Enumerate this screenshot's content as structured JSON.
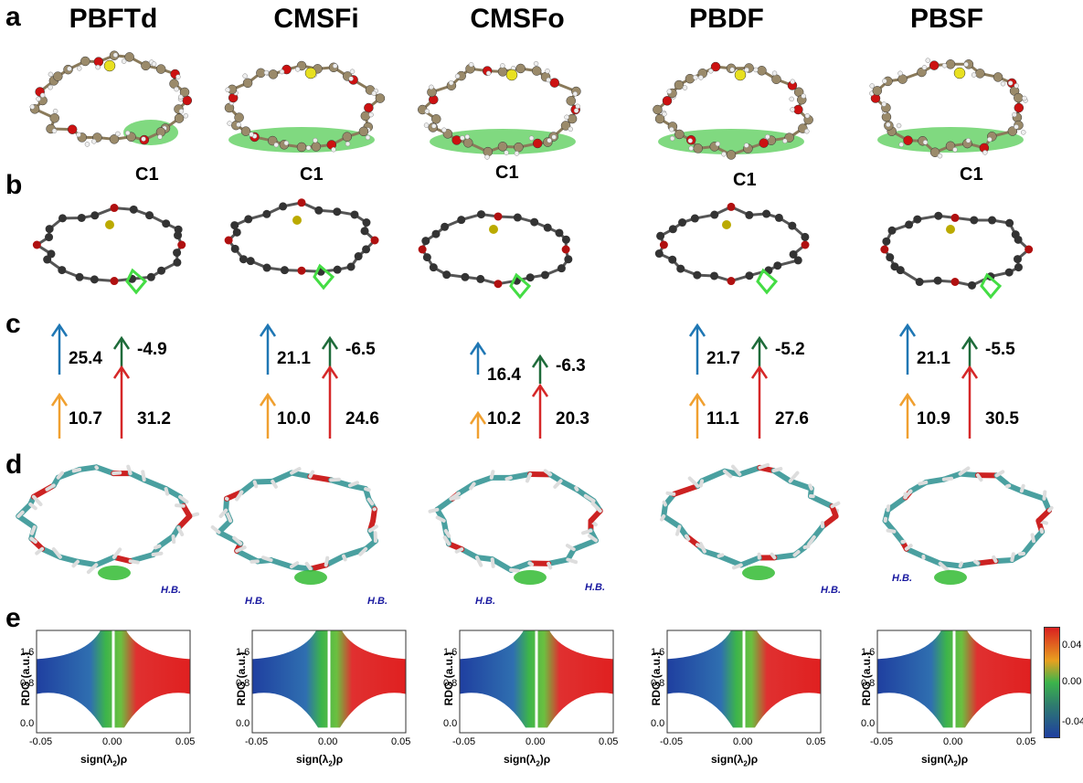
{
  "panel_labels": [
    "a",
    "b",
    "c",
    "d",
    "e"
  ],
  "molecules": [
    {
      "name": "PBFTd",
      "c1": "C1",
      "up_blue": "25.4",
      "down_green": "-4.9",
      "up_orange": "10.7",
      "up_red": "31.2",
      "hb_labels": [
        "H.B."
      ]
    },
    {
      "name": "CMSFi",
      "c1": "C1",
      "up_blue": "21.1",
      "down_green": "-6.5",
      "up_orange": "10.0",
      "up_red": "24.6",
      "hb_labels": [
        "H.B.",
        "H.B."
      ]
    },
    {
      "name": "CMSFo",
      "c1": "C1",
      "up_blue": "16.4",
      "down_green": "-6.3",
      "up_orange": "10.2",
      "up_red": "20.3",
      "hb_labels": [
        "H.B.",
        "H.B."
      ]
    },
    {
      "name": "PBDF",
      "c1": "C1",
      "up_blue": "21.7",
      "down_green": "-5.2",
      "up_orange": "11.1",
      "up_red": "27.6",
      "hb_labels": [
        "H.B."
      ]
    },
    {
      "name": "PBSF",
      "c1": "C1",
      "up_blue": "21.1",
      "down_green": "-5.5",
      "up_orange": "10.9",
      "up_red": "30.5",
      "hb_labels": [
        "H.B."
      ]
    }
  ],
  "rdg_axis": {
    "ylabel": "RDG (a.u.)",
    "xlabel": "sign(λ",
    "xlabel_sub": "2",
    "xlabel_tail": ")ρ",
    "yticks": [
      "1.6",
      "0.8",
      "0.0"
    ],
    "xticks": [
      "-0.05",
      "0.00",
      "0.05"
    ]
  },
  "colorbar": {
    "ticks": [
      "0.04",
      "0.00",
      "-0.04"
    ]
  },
  "colors": {
    "blue": "#1f77b4",
    "green": "#1e6b3a",
    "orange": "#f0a030",
    "red": "#d62728",
    "carbon_a": "#9a8a6a",
    "oxygen": "#cc1111",
    "sulfur": "#e8e020",
    "nci_green": "#55cc55",
    "stick": "#4aa0a0"
  }
}
